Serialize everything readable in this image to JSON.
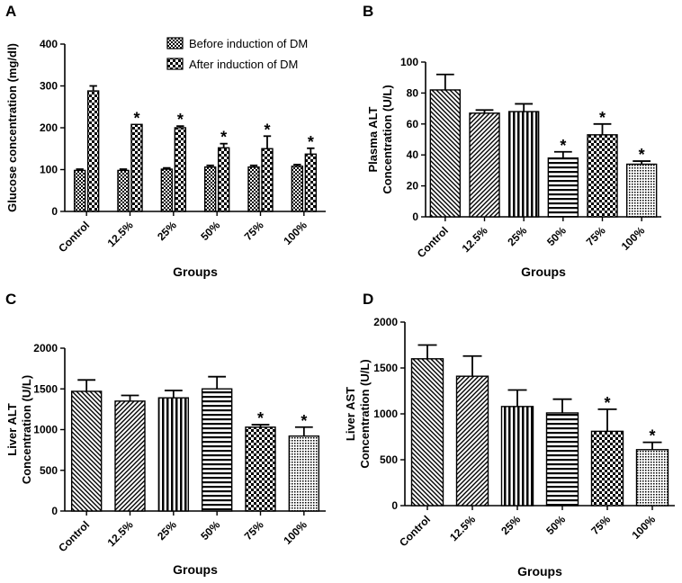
{
  "chart_data": [
    {
      "id": "A",
      "panel_label": "A",
      "type": "bar",
      "categories": [
        "Control",
        "12.5%",
        "25%",
        "50%",
        "75%",
        "100%"
      ],
      "series": [
        {
          "name": "Before induction of DM",
          "values": [
            98,
            98,
            101,
            106,
            106,
            108
          ],
          "errors": [
            3,
            3,
            3,
            4,
            4,
            4
          ],
          "pattern": "mesh"
        },
        {
          "name": "After induction of DM",
          "values": [
            288,
            208,
            200,
            152,
            150,
            137
          ],
          "errors": [
            12,
            0,
            4,
            10,
            30,
            14
          ],
          "pattern": "checker"
        }
      ],
      "significant": [
        false,
        true,
        true,
        true,
        true,
        true
      ],
      "xlabel": "Groups",
      "ylabel": "Glucose concentration (mg/dl)",
      "ylim": [
        0,
        400
      ],
      "yticks": [
        0,
        100,
        200,
        300,
        400
      ],
      "legend": "top-right"
    },
    {
      "id": "B",
      "panel_label": "B",
      "type": "bar",
      "categories": [
        "Control",
        "12.5%",
        "25%",
        "50%",
        "75%",
        "100%"
      ],
      "values": [
        82,
        67,
        68,
        38,
        53,
        34
      ],
      "errors": [
        10,
        2,
        5,
        4,
        7,
        2
      ],
      "significant": [
        false,
        false,
        false,
        true,
        true,
        true
      ],
      "patterns": [
        "diag-down",
        "diag-up",
        "vertical",
        "horizontal",
        "checker",
        "dots"
      ],
      "xlabel": "Groups",
      "ylabel": [
        "Plasma ALT",
        "Concentration (U/L)"
      ],
      "ylim": [
        0,
        100
      ],
      "yticks": [
        0,
        20,
        40,
        60,
        80,
        100
      ]
    },
    {
      "id": "C",
      "panel_label": "C",
      "type": "bar",
      "categories": [
        "Control",
        "12.5%",
        "25%",
        "50%",
        "75%",
        "100%"
      ],
      "values": [
        1470,
        1350,
        1390,
        1500,
        1030,
        920
      ],
      "errors": [
        140,
        70,
        90,
        150,
        30,
        110
      ],
      "significant": [
        false,
        false,
        false,
        false,
        true,
        true
      ],
      "patterns": [
        "diag-down",
        "diag-up",
        "vertical",
        "horizontal",
        "checker",
        "dots"
      ],
      "xlabel": "Groups",
      "ylabel": [
        "Liver ALT",
        "Concentration (U/L)"
      ],
      "ylim": [
        0,
        2000
      ],
      "yticks": [
        0,
        500,
        1000,
        1500,
        2000
      ]
    },
    {
      "id": "D",
      "panel_label": "D",
      "type": "bar",
      "categories": [
        "Control",
        "12.5%",
        "25%",
        "50%",
        "75%",
        "100%"
      ],
      "values": [
        1600,
        1410,
        1080,
        1010,
        810,
        610
      ],
      "errors": [
        150,
        220,
        180,
        150,
        240,
        80
      ],
      "significant": [
        false,
        false,
        false,
        false,
        true,
        true
      ],
      "patterns": [
        "diag-down",
        "diag-up",
        "vertical",
        "horizontal",
        "checker",
        "dots"
      ],
      "xlabel": "Groups",
      "ylabel": [
        "Liver AST",
        "Concentration (U/L)"
      ],
      "ylim": [
        0,
        2000
      ],
      "yticks": [
        0,
        500,
        1000,
        1500,
        2000
      ]
    }
  ],
  "star_symbol": "*",
  "colors": {
    "ink": "#000000",
    "background": "#ffffff"
  }
}
